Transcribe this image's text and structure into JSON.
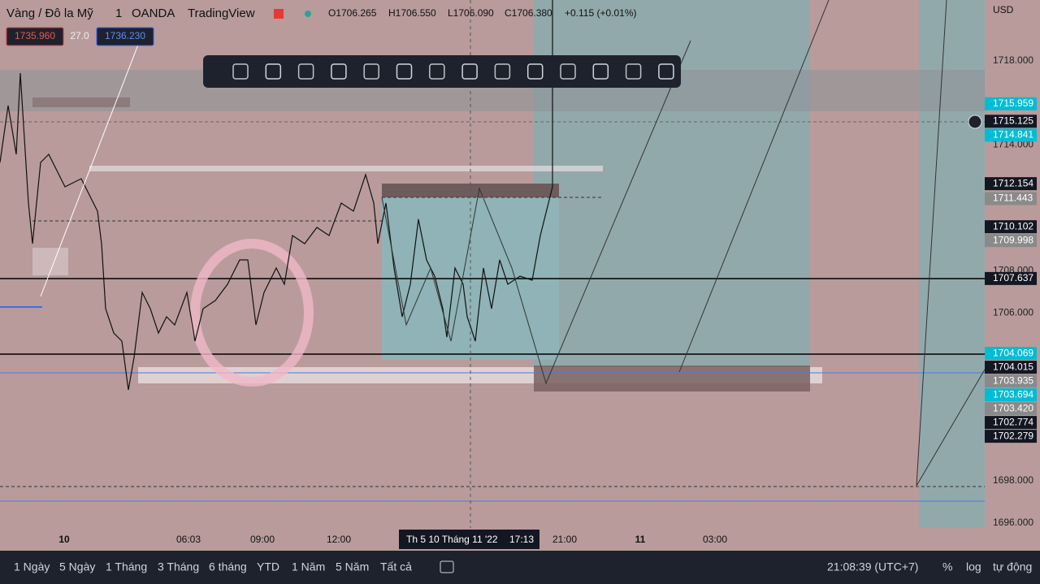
{
  "header": {
    "symbol": "Vàng / Đô la Mỹ",
    "interval": "1",
    "broker": "OANDA",
    "source": "TradingView",
    "open": "O1706.265",
    "high": "H1706.550",
    "low": "L1706.090",
    "close": "C1706.380",
    "change": "+0.115 (+0.01%)",
    "sell": "1735.960",
    "spread": "27.0",
    "buy": "1736.230"
  },
  "price_axis": {
    "currency": "USD",
    "labels": [
      "1718.000",
      "1714.000",
      "1708.000",
      "1706.000",
      "1698.000",
      "1696.000"
    ],
    "tags": [
      {
        "text": "1715.959",
        "color": "#00bcd4"
      },
      {
        "text": "1715.125",
        "color": "#131722"
      },
      {
        "text": "1714.841",
        "color": "#00bcd4"
      },
      {
        "text": "1712.154",
        "color": "#131722"
      },
      {
        "text": "1711.443",
        "color": "#8a8a8a"
      },
      {
        "text": "1710.102",
        "color": "#131722"
      },
      {
        "text": "1709.998",
        "color": "#8a8a8a"
      },
      {
        "text": "1707.637",
        "color": "#131722"
      },
      {
        "text": "1704.069",
        "color": "#00bcd4"
      },
      {
        "text": "1704.015",
        "color": "#131722"
      },
      {
        "text": "1703.935",
        "color": "#8a8a8a"
      },
      {
        "text": "1703.694",
        "color": "#00bcd4"
      },
      {
        "text": "1703.420",
        "color": "#8a8a8a"
      },
      {
        "text": "1702.774",
        "color": "#131722"
      },
      {
        "text": "1702.279",
        "color": "#131722"
      }
    ]
  },
  "time_axis": {
    "labels": [
      "10",
      "06:03",
      "09:00",
      "12:00",
      "21:00",
      "11",
      "03:00"
    ],
    "crosshair_date": "Th 5 10 Tháng 11 '22",
    "crosshair_time": "17:13"
  },
  "bottom_bar": {
    "ranges": [
      "1 Ngày",
      "5 Ngày",
      "1 Tháng",
      "3 Tháng",
      "6 tháng",
      "YTD",
      "1 Năm",
      "5 Năm",
      "Tất cả"
    ],
    "clock": "21:08:39 (UTC+7)",
    "percent": "%",
    "log": "log",
    "auto": "tự động"
  }
}
